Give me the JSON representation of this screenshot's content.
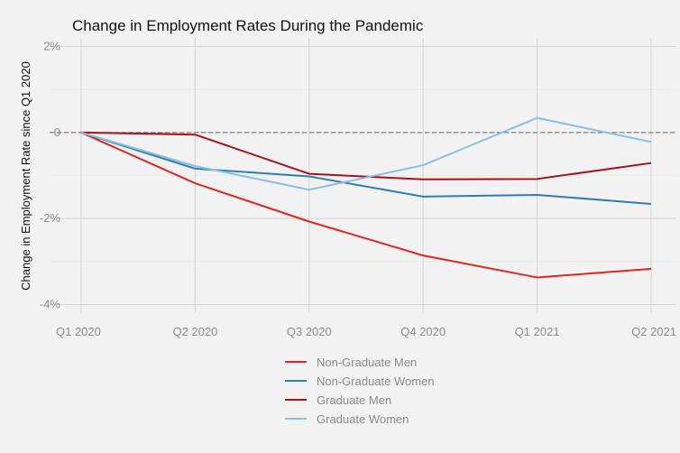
{
  "chart_data": {
    "type": "line",
    "title": "Change in Employment Rates During the Pandemic",
    "xlabel": "",
    "ylabel": "Change in Employment Rate since Q1 2020",
    "categories": [
      "Q1 2020",
      "Q2 2020",
      "Q3 2020",
      "Q4 2020",
      "Q1 2021",
      "Q2 2021"
    ],
    "ylim": [
      -4.2,
      2.2
    ],
    "yticks": [
      2,
      0,
      -2,
      -4
    ],
    "ytick_labels": [
      "2%",
      "0",
      "-2%",
      "-4%"
    ],
    "reference_line": {
      "y": 0,
      "style": "dashed"
    },
    "grid": true,
    "legend": {
      "placement": "bottom"
    },
    "series": [
      {
        "name": "Non-Graduate Men",
        "color": "#e2261f",
        "values": [
          0,
          -1.18,
          -2.07,
          -2.86,
          -3.37,
          -3.17
        ]
      },
      {
        "name": "Non-Graduate Women",
        "color": "#2f7fb1",
        "values": [
          0,
          -0.84,
          -1.02,
          -1.49,
          -1.45,
          -1.66
        ]
      },
      {
        "name": "Graduate Men",
        "color": "#a8101e",
        "values": [
          0,
          -0.05,
          -0.96,
          -1.09,
          -1.08,
          -0.71
        ]
      },
      {
        "name": "Graduate Women",
        "color": "#8dbfe6",
        "values": [
          0,
          -0.78,
          -1.33,
          -0.76,
          0.34,
          -0.22
        ]
      }
    ]
  }
}
